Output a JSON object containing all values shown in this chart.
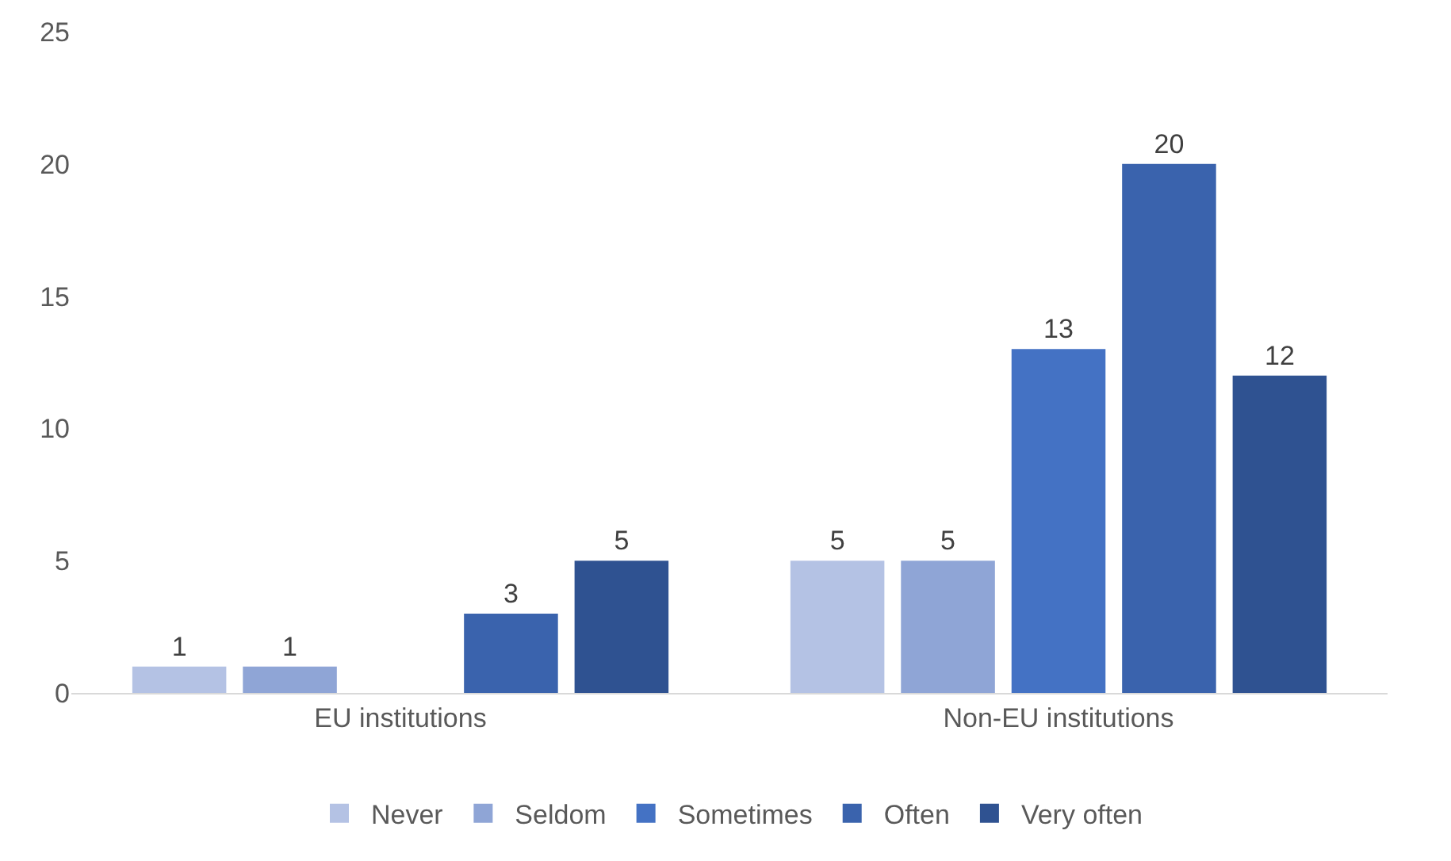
{
  "chart_data": {
    "type": "bar",
    "categories": [
      "EU institutions",
      "Non-EU institutions"
    ],
    "series": [
      {
        "name": "Never",
        "color": "#b4c2e4",
        "values": [
          1,
          5
        ]
      },
      {
        "name": "Seldom",
        "color": "#8fa5d6",
        "values": [
          1,
          5
        ]
      },
      {
        "name": "Sometimes",
        "color": "#4472c4",
        "values": [
          null,
          13
        ]
      },
      {
        "name": "Often",
        "color": "#3a63ad",
        "values": [
          3,
          20
        ]
      },
      {
        "name": "Very often",
        "color": "#2f5291",
        "values": [
          5,
          12
        ]
      }
    ],
    "ylim": [
      0,
      25
    ],
    "yticks": [
      0,
      5,
      10,
      15,
      20,
      25
    ],
    "data_labels": true,
    "legend": "bottom"
  }
}
